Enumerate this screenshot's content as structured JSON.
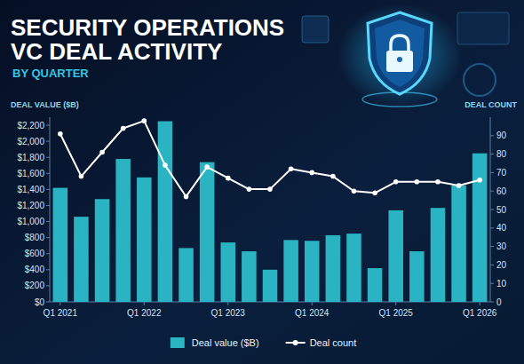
{
  "chart_data": {
    "type": "bar",
    "title": "SECURITY OPERATIONS VC DEAL ACTIVITY",
    "subtitle": "BY QUARTER",
    "y_label": "DEAL VALUE ($B)",
    "y2_label": "DEAL COUNT",
    "categories": [
      "Q1 2021",
      null,
      null,
      null,
      "Q1 2022",
      null,
      null,
      null,
      "Q1 2023",
      null,
      null,
      null,
      "Q1 2024",
      null,
      null,
      null,
      "Q1 2025",
      null,
      null,
      null,
      "Q1 2026"
    ],
    "series": [
      {
        "name": "Deal value ($B)",
        "type": "bar",
        "color": "#2ab3c2",
        "values": [
          1420,
          1060,
          1280,
          1780,
          1550,
          2250,
          670,
          1740,
          740,
          630,
          400,
          770,
          760,
          830,
          850,
          420,
          1140,
          630,
          1170,
          1450,
          1850
        ]
      },
      {
        "name": "Deal count",
        "type": "line",
        "axis": "y2",
        "color": "#ffffff",
        "marker": "circle",
        "values": [
          91,
          68,
          81,
          94,
          98,
          74,
          57,
          73,
          67,
          61,
          61,
          72,
          70,
          68,
          60,
          59,
          65,
          65,
          65,
          63,
          66
        ]
      }
    ],
    "ylim": [
      0,
      2300
    ],
    "yticks": [
      {
        "value": 0,
        "label": "$0"
      },
      {
        "value": 200,
        "label": "$200"
      },
      {
        "value": 400,
        "label": "$400"
      },
      {
        "value": 600,
        "label": "$600"
      },
      {
        "value": 800,
        "label": "$800"
      },
      {
        "value": 1000,
        "label": "$1,000"
      },
      {
        "value": 1200,
        "label": "$1,200"
      },
      {
        "value": 1400,
        "label": "$1,400"
      },
      {
        "value": 1600,
        "label": "$1,600"
      },
      {
        "value": 1800,
        "label": "$1,800"
      },
      {
        "value": 2000,
        "label": "$2,000"
      },
      {
        "value": 2200,
        "label": "$2,200"
      }
    ],
    "y2lim": [
      0,
      100
    ],
    "y2ticks": [
      0,
      10,
      20,
      30,
      40,
      50,
      60,
      70,
      80,
      90
    ],
    "grid": false,
    "legend": "bottom"
  }
}
